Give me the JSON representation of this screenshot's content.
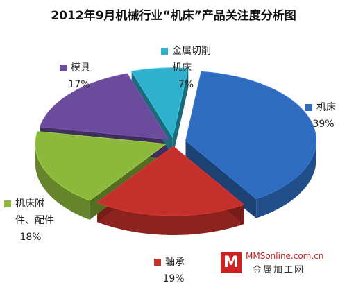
{
  "chart_data": {
    "type": "pie",
    "title": "2012年9月机械行业“机床”产品关注度分析图",
    "categories": [
      "机床",
      "轴承",
      "机床附件、配件",
      "模具",
      "金属切削机床"
    ],
    "values": [
      39,
      19,
      18,
      17,
      7
    ],
    "value_labels": [
      "39%",
      "19%",
      "18%",
      "17%",
      "7%"
    ],
    "colors": [
      "#2f6cc0",
      "#c4302b",
      "#8cb83c",
      "#6b4c9c",
      "#2fb0cc"
    ],
    "watermark": {
      "site": "MMSonline.com.cn",
      "name": "金属加工网"
    }
  }
}
